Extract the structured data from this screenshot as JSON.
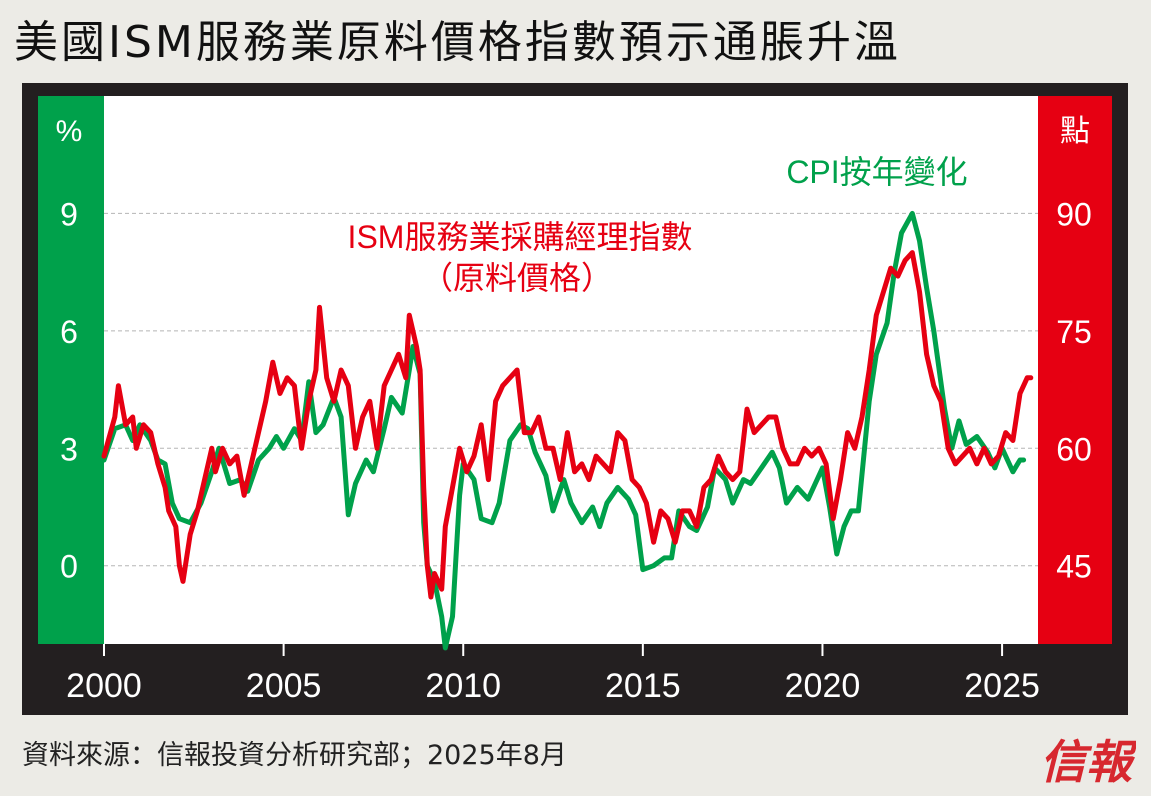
{
  "title": "美國ISM服務業原料價格指數預示通脹升溫",
  "footer": {
    "source": "資料來源：信報投資分析研究部；2025年8月"
  },
  "logo": {
    "text": "信報",
    "color": "#d7282f"
  },
  "colors": {
    "green": "#00a14b",
    "red": "#e60012",
    "background": "#ffffff",
    "frame": "#231f20"
  },
  "chart_data": {
    "type": "line",
    "left_axis": {
      "unit": "%",
      "ticks": [
        0,
        3,
        6,
        9
      ],
      "range": [
        -2,
        12
      ]
    },
    "right_axis": {
      "unit": "點",
      "ticks": [
        45,
        60,
        75,
        90
      ],
      "range": [
        35,
        105
      ]
    },
    "x_axis": {
      "ticks": [
        2000,
        2005,
        2010,
        2015,
        2020,
        2025
      ],
      "range": [
        2000.0,
        2026.0
      ]
    },
    "grid": true,
    "series": [
      {
        "name": "CPI按年變化",
        "axis": "left",
        "color": "#00a14b",
        "points": [
          [
            2000.0,
            2.7
          ],
          [
            2000.3,
            3.5
          ],
          [
            2000.6,
            3.6
          ],
          [
            2000.8,
            3.2
          ],
          [
            2001.0,
            3.6
          ],
          [
            2001.3,
            3.2
          ],
          [
            2001.5,
            2.7
          ],
          [
            2001.7,
            2.6
          ],
          [
            2001.9,
            1.6
          ],
          [
            2002.1,
            1.2
          ],
          [
            2002.4,
            1.1
          ],
          [
            2002.7,
            1.6
          ],
          [
            2003.0,
            2.4
          ],
          [
            2003.2,
            3.0
          ],
          [
            2003.5,
            2.1
          ],
          [
            2003.8,
            2.2
          ],
          [
            2004.0,
            1.9
          ],
          [
            2004.3,
            2.7
          ],
          [
            2004.6,
            3.0
          ],
          [
            2004.8,
            3.3
          ],
          [
            2005.0,
            3.0
          ],
          [
            2005.3,
            3.5
          ],
          [
            2005.5,
            3.2
          ],
          [
            2005.7,
            4.7
          ],
          [
            2005.9,
            3.4
          ],
          [
            2006.1,
            3.6
          ],
          [
            2006.4,
            4.3
          ],
          [
            2006.6,
            3.8
          ],
          [
            2006.8,
            1.3
          ],
          [
            2007.0,
            2.1
          ],
          [
            2007.3,
            2.7
          ],
          [
            2007.5,
            2.4
          ],
          [
            2007.8,
            3.5
          ],
          [
            2008.0,
            4.3
          ],
          [
            2008.3,
            3.9
          ],
          [
            2008.5,
            5.0
          ],
          [
            2008.6,
            5.6
          ],
          [
            2008.8,
            4.9
          ],
          [
            2008.9,
            1.1
          ],
          [
            2009.0,
            0.0
          ],
          [
            2009.2,
            -0.4
          ],
          [
            2009.4,
            -1.3
          ],
          [
            2009.5,
            -2.1
          ],
          [
            2009.7,
            -1.3
          ],
          [
            2009.9,
            1.8
          ],
          [
            2010.0,
            2.6
          ],
          [
            2010.3,
            2.2
          ],
          [
            2010.5,
            1.2
          ],
          [
            2010.8,
            1.1
          ],
          [
            2011.0,
            1.6
          ],
          [
            2011.3,
            3.2
          ],
          [
            2011.6,
            3.6
          ],
          [
            2011.8,
            3.5
          ],
          [
            2012.0,
            2.9
          ],
          [
            2012.3,
            2.3
          ],
          [
            2012.5,
            1.4
          ],
          [
            2012.8,
            2.2
          ],
          [
            2013.0,
            1.6
          ],
          [
            2013.3,
            1.1
          ],
          [
            2013.6,
            1.5
          ],
          [
            2013.8,
            1.0
          ],
          [
            2014.0,
            1.6
          ],
          [
            2014.3,
            2.0
          ],
          [
            2014.6,
            1.7
          ],
          [
            2014.8,
            1.3
          ],
          [
            2015.0,
            -0.1
          ],
          [
            2015.3,
            0.0
          ],
          [
            2015.6,
            0.2
          ],
          [
            2015.8,
            0.2
          ],
          [
            2016.0,
            1.4
          ],
          [
            2016.3,
            1.0
          ],
          [
            2016.5,
            0.9
          ],
          [
            2016.8,
            1.5
          ],
          [
            2017.0,
            2.5
          ],
          [
            2017.3,
            2.2
          ],
          [
            2017.5,
            1.6
          ],
          [
            2017.8,
            2.2
          ],
          [
            2018.0,
            2.1
          ],
          [
            2018.3,
            2.5
          ],
          [
            2018.6,
            2.9
          ],
          [
            2018.8,
            2.5
          ],
          [
            2019.0,
            1.6
          ],
          [
            2019.3,
            2.0
          ],
          [
            2019.6,
            1.7
          ],
          [
            2019.8,
            2.1
          ],
          [
            2020.0,
            2.5
          ],
          [
            2020.2,
            1.5
          ],
          [
            2020.4,
            0.3
          ],
          [
            2020.6,
            1.0
          ],
          [
            2020.8,
            1.4
          ],
          [
            2021.0,
            1.4
          ],
          [
            2021.3,
            4.2
          ],
          [
            2021.5,
            5.4
          ],
          [
            2021.8,
            6.2
          ],
          [
            2022.0,
            7.5
          ],
          [
            2022.2,
            8.5
          ],
          [
            2022.5,
            9.0
          ],
          [
            2022.7,
            8.3
          ],
          [
            2022.9,
            7.1
          ],
          [
            2023.1,
            6.0
          ],
          [
            2023.4,
            4.0
          ],
          [
            2023.6,
            3.0
          ],
          [
            2023.8,
            3.7
          ],
          [
            2024.0,
            3.1
          ],
          [
            2024.3,
            3.3
          ],
          [
            2024.6,
            2.9
          ],
          [
            2024.8,
            2.5
          ],
          [
            2025.0,
            3.0
          ],
          [
            2025.3,
            2.4
          ],
          [
            2025.5,
            2.7
          ],
          [
            2025.6,
            2.7
          ]
        ]
      },
      {
        "name": "ISM服務業採購經理指數（原料價格）",
        "label_lines": [
          "ISM服務業採購經理指數",
          "（原料價格）"
        ],
        "axis": "right",
        "color": "#e60012",
        "points": [
          [
            2000.0,
            59.0
          ],
          [
            2000.3,
            64.0
          ],
          [
            2000.4,
            68.0
          ],
          [
            2000.6,
            63.0
          ],
          [
            2000.8,
            64.0
          ],
          [
            2000.9,
            60.0
          ],
          [
            2001.1,
            63.0
          ],
          [
            2001.3,
            62.0
          ],
          [
            2001.5,
            58.0
          ],
          [
            2001.7,
            55.0
          ],
          [
            2001.8,
            52.0
          ],
          [
            2002.0,
            50.0
          ],
          [
            2002.1,
            45.0
          ],
          [
            2002.2,
            43.0
          ],
          [
            2002.4,
            49.0
          ],
          [
            2002.6,
            52.0
          ],
          [
            2002.8,
            56.0
          ],
          [
            2003.0,
            60.0
          ],
          [
            2003.1,
            57.0
          ],
          [
            2003.3,
            60.0
          ],
          [
            2003.5,
            58.0
          ],
          [
            2003.7,
            59.0
          ],
          [
            2003.9,
            54.0
          ],
          [
            2004.1,
            58.0
          ],
          [
            2004.3,
            62.0
          ],
          [
            2004.5,
            66.0
          ],
          [
            2004.7,
            71.0
          ],
          [
            2004.9,
            67.0
          ],
          [
            2005.1,
            69.0
          ],
          [
            2005.3,
            68.0
          ],
          [
            2005.5,
            60.0
          ],
          [
            2005.7,
            66.0
          ],
          [
            2005.9,
            70.0
          ],
          [
            2006.0,
            78.0
          ],
          [
            2006.2,
            69.0
          ],
          [
            2006.4,
            66.0
          ],
          [
            2006.6,
            70.0
          ],
          [
            2006.8,
            68.0
          ],
          [
            2007.0,
            60.0
          ],
          [
            2007.2,
            64.0
          ],
          [
            2007.4,
            66.0
          ],
          [
            2007.6,
            60.0
          ],
          [
            2007.8,
            68.0
          ],
          [
            2008.0,
            70.0
          ],
          [
            2008.2,
            72.0
          ],
          [
            2008.4,
            69.0
          ],
          [
            2008.5,
            77.0
          ],
          [
            2008.7,
            73.0
          ],
          [
            2008.8,
            70.0
          ],
          [
            2008.9,
            55.0
          ],
          [
            2009.0,
            45.0
          ],
          [
            2009.1,
            41.0
          ],
          [
            2009.2,
            44.0
          ],
          [
            2009.4,
            42.0
          ],
          [
            2009.5,
            50.0
          ],
          [
            2009.7,
            55.0
          ],
          [
            2009.9,
            60.0
          ],
          [
            2010.1,
            57.0
          ],
          [
            2010.3,
            59.0
          ],
          [
            2010.5,
            63.0
          ],
          [
            2010.7,
            56.0
          ],
          [
            2010.9,
            66.0
          ],
          [
            2011.1,
            68.0
          ],
          [
            2011.3,
            69.0
          ],
          [
            2011.5,
            70.0
          ],
          [
            2011.7,
            62.0
          ],
          [
            2011.9,
            62.0
          ],
          [
            2012.1,
            64.0
          ],
          [
            2012.3,
            60.0
          ],
          [
            2012.5,
            60.0
          ],
          [
            2012.7,
            56.0
          ],
          [
            2012.9,
            62.0
          ],
          [
            2013.1,
            57.0
          ],
          [
            2013.3,
            58.0
          ],
          [
            2013.5,
            56.0
          ],
          [
            2013.7,
            59.0
          ],
          [
            2013.9,
            58.0
          ],
          [
            2014.1,
            57.0
          ],
          [
            2014.3,
            62.0
          ],
          [
            2014.5,
            61.0
          ],
          [
            2014.7,
            56.0
          ],
          [
            2014.9,
            55.0
          ],
          [
            2015.1,
            53.0
          ],
          [
            2015.3,
            48.0
          ],
          [
            2015.5,
            52.0
          ],
          [
            2015.7,
            51.0
          ],
          [
            2015.9,
            48.0
          ],
          [
            2016.1,
            52.0
          ],
          [
            2016.3,
            52.0
          ],
          [
            2016.5,
            50.0
          ],
          [
            2016.7,
            55.0
          ],
          [
            2016.9,
            56.0
          ],
          [
            2017.1,
            59.0
          ],
          [
            2017.3,
            57.0
          ],
          [
            2017.5,
            56.0
          ],
          [
            2017.7,
            57.0
          ],
          [
            2017.9,
            65.0
          ],
          [
            2018.1,
            62.0
          ],
          [
            2018.3,
            63.0
          ],
          [
            2018.5,
            64.0
          ],
          [
            2018.7,
            64.0
          ],
          [
            2018.9,
            60.0
          ],
          [
            2019.1,
            58.0
          ],
          [
            2019.3,
            58.0
          ],
          [
            2019.5,
            60.0
          ],
          [
            2019.7,
            59.0
          ],
          [
            2019.9,
            60.0
          ],
          [
            2020.1,
            58.0
          ],
          [
            2020.3,
            51.0
          ],
          [
            2020.5,
            56.0
          ],
          [
            2020.7,
            62.0
          ],
          [
            2020.9,
            60.0
          ],
          [
            2021.1,
            64.0
          ],
          [
            2021.3,
            70.0
          ],
          [
            2021.5,
            77.0
          ],
          [
            2021.7,
            80.0
          ],
          [
            2021.9,
            83.0
          ],
          [
            2022.1,
            82.0
          ],
          [
            2022.3,
            84.0
          ],
          [
            2022.5,
            85.0
          ],
          [
            2022.7,
            80.0
          ],
          [
            2022.9,
            72.0
          ],
          [
            2023.1,
            68.0
          ],
          [
            2023.3,
            66.0
          ],
          [
            2023.5,
            60.0
          ],
          [
            2023.7,
            58.0
          ],
          [
            2023.9,
            59.0
          ],
          [
            2024.1,
            60.0
          ],
          [
            2024.3,
            58.0
          ],
          [
            2024.5,
            60.0
          ],
          [
            2024.7,
            58.0
          ],
          [
            2024.9,
            59.0
          ],
          [
            2025.1,
            62.0
          ],
          [
            2025.3,
            61.0
          ],
          [
            2025.5,
            67.0
          ],
          [
            2025.7,
            69.0
          ],
          [
            2025.8,
            69.0
          ]
        ]
      }
    ]
  }
}
